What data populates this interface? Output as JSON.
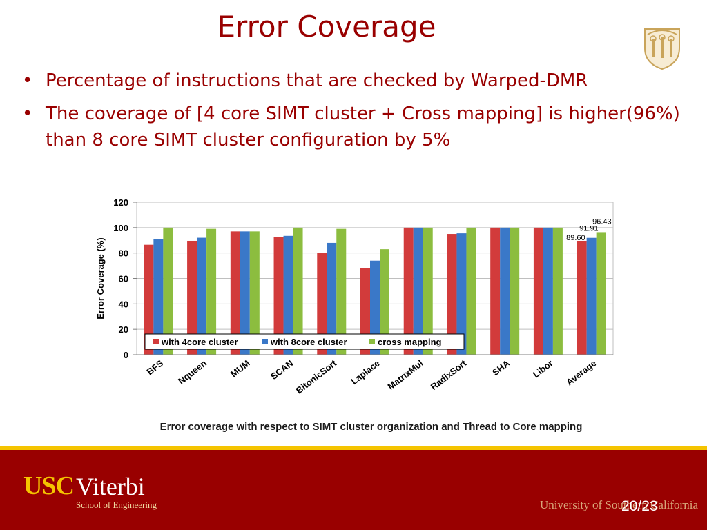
{
  "slide": {
    "title": "Error Coverage",
    "bullets": [
      "Percentage of instructions that are checked by Warped-DMR",
      "The coverage of [4 core SIMT cluster + Cross mapping] is higher(96%) than 8 core SIMT cluster configuration by 5%"
    ],
    "bullet_glyph": "•",
    "caption": "Error coverage with respect to SIMT cluster organization and Thread to Core mapping",
    "page_number": "20/23"
  },
  "footer": {
    "logo_usc": "USC",
    "logo_viterbi": "Viterbi",
    "logo_school": "School of Engineering",
    "university": "University of Southern California",
    "colors": {
      "cardinal": "#990000",
      "gold": "#f5c400"
    }
  },
  "chart_data": {
    "type": "bar",
    "categories": [
      "BFS",
      "Nqueen",
      "MUM",
      "SCAN",
      "BitonicSort",
      "Laplace",
      "MatrixMul",
      "RadixSort",
      "SHA",
      "Libor",
      "Average"
    ],
    "series": [
      {
        "name": "with 4core cluster",
        "color": "#d23b3b",
        "values": [
          86.5,
          89.6,
          97,
          92.5,
          80,
          68,
          100,
          95,
          100,
          100,
          89.6
        ]
      },
      {
        "name": "with 8core cluster",
        "color": "#3a78c8",
        "values": [
          91,
          92,
          97,
          93.5,
          88,
          74,
          100,
          95.5,
          100,
          100,
          91.91
        ]
      },
      {
        "name": "cross mapping",
        "color": "#8cbd3f",
        "values": [
          100,
          99,
          97,
          100,
          99,
          83,
          100,
          100,
          100,
          100,
          96.43
        ]
      }
    ],
    "data_labels": [
      "89.60",
      "91.91",
      "96.43"
    ],
    "ylabel": "Error Coverage (%)",
    "xlabel": "",
    "ylim": [
      0,
      120
    ],
    "yticks": [
      0,
      20,
      40,
      60,
      80,
      100,
      120
    ],
    "grid": true,
    "legend_position": "bottom-left inside"
  }
}
